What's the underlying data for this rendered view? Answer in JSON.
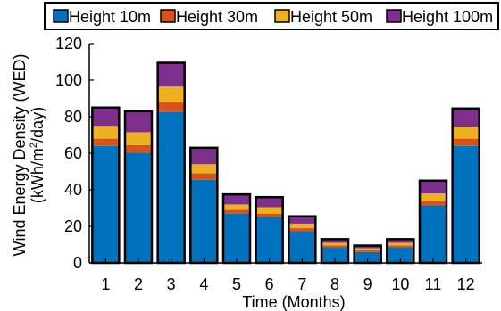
{
  "chart_data": {
    "type": "bar",
    "stacked": true,
    "categories": [
      "1",
      "2",
      "3",
      "4",
      "5",
      "6",
      "7",
      "8",
      "9",
      "10",
      "11",
      "12"
    ],
    "series": [
      {
        "name": "Height 10m",
        "color": "#0072BD",
        "values": [
          64,
          60,
          82.5,
          45.5,
          27,
          25,
          17.5,
          8.5,
          6,
          8.5,
          31.5,
          64
        ]
      },
      {
        "name": "Height 30m",
        "color": "#D95319",
        "values": [
          4,
          4.5,
          5.5,
          3.5,
          2,
          2,
          1.5,
          1,
          1,
          1,
          2.5,
          4
        ]
      },
      {
        "name": "Height 50m",
        "color": "#EDB120",
        "values": [
          7,
          7,
          8.5,
          5,
          3,
          3.5,
          2.5,
          1.5,
          1,
          1.5,
          4,
          6.5
        ]
      },
      {
        "name": "Height 100m",
        "color": "#7E2F8E",
        "values": [
          10,
          11.5,
          13,
          9,
          5.5,
          5.5,
          4,
          2,
          1.5,
          2,
          7,
          10
        ]
      }
    ],
    "xlabel": "Time (Months)",
    "ylabel_line1": "Wind Energy Density (WED)",
    "ylabel_line2_pre": "(kWh/m",
    "ylabel_sup": "2",
    "ylabel_line2_post": "/day)",
    "ylim": [
      0,
      120
    ],
    "yticks": [
      "0",
      "20",
      "40",
      "60",
      "80",
      "100",
      "120"
    ],
    "grid": false,
    "legend_position": "top"
  }
}
